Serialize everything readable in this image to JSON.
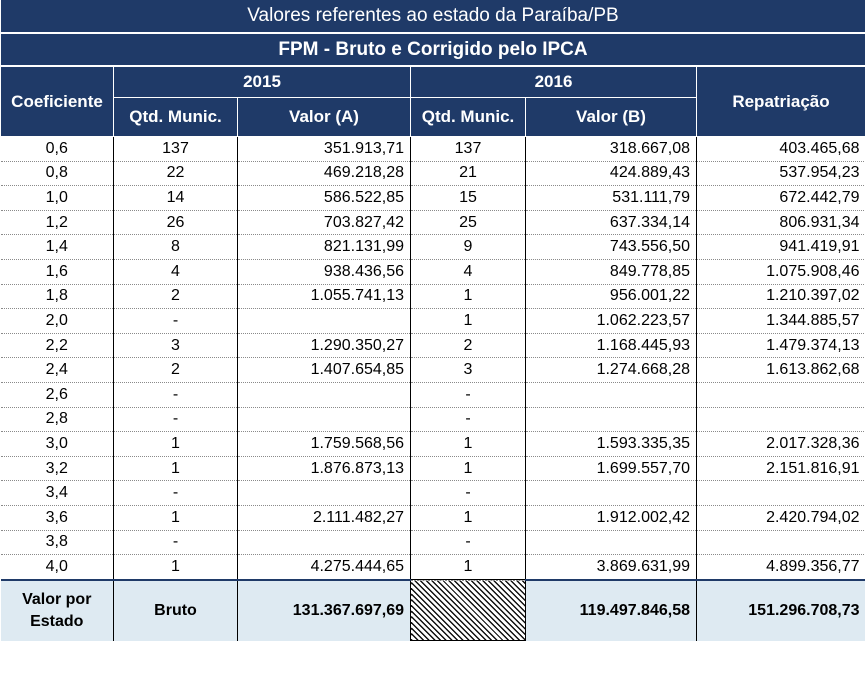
{
  "title": "Valores referentes ao estado da Paraíba/PB",
  "subtitle": "FPM - Bruto e Corrigido pelo IPCA",
  "headers": {
    "coeficiente": "Coeficiente",
    "year_2015": "2015",
    "year_2016": "2016",
    "repatriacao": "Repatriação",
    "qtd_munic_2015": "Qtd. Munic.",
    "valor_a": "Valor (A)",
    "qtd_munic_2016": "Qtd. Munic.",
    "valor_b": "Valor (B)"
  },
  "rows": [
    {
      "coef": "0,6",
      "q2015": "137",
      "valor_a": "351.913,71",
      "q2016": "137",
      "valor_b": "318.667,08",
      "repat": "403.465,68"
    },
    {
      "coef": "0,8",
      "q2015": "22",
      "valor_a": "469.218,28",
      "q2016": "21",
      "valor_b": "424.889,43",
      "repat": "537.954,23"
    },
    {
      "coef": "1,0",
      "q2015": "14",
      "valor_a": "586.522,85",
      "q2016": "15",
      "valor_b": "531.111,79",
      "repat": "672.442,79"
    },
    {
      "coef": "1,2",
      "q2015": "26",
      "valor_a": "703.827,42",
      "q2016": "25",
      "valor_b": "637.334,14",
      "repat": "806.931,34"
    },
    {
      "coef": "1,4",
      "q2015": "8",
      "valor_a": "821.131,99",
      "q2016": "9",
      "valor_b": "743.556,50",
      "repat": "941.419,91"
    },
    {
      "coef": "1,6",
      "q2015": "4",
      "valor_a": "938.436,56",
      "q2016": "4",
      "valor_b": "849.778,85",
      "repat": "1.075.908,46"
    },
    {
      "coef": "1,8",
      "q2015": "2",
      "valor_a": "1.055.741,13",
      "q2016": "1",
      "valor_b": "956.001,22",
      "repat": "1.210.397,02"
    },
    {
      "coef": "2,0",
      "q2015": "-",
      "valor_a": "",
      "q2016": "1",
      "valor_b": "1.062.223,57",
      "repat": "1.344.885,57"
    },
    {
      "coef": "2,2",
      "q2015": "3",
      "valor_a": "1.290.350,27",
      "q2016": "2",
      "valor_b": "1.168.445,93",
      "repat": "1.479.374,13"
    },
    {
      "coef": "2,4",
      "q2015": "2",
      "valor_a": "1.407.654,85",
      "q2016": "3",
      "valor_b": "1.274.668,28",
      "repat": "1.613.862,68"
    },
    {
      "coef": "2,6",
      "q2015": "-",
      "valor_a": "",
      "q2016": "-",
      "valor_b": "",
      "repat": ""
    },
    {
      "coef": "2,8",
      "q2015": "-",
      "valor_a": "",
      "q2016": "-",
      "valor_b": "",
      "repat": ""
    },
    {
      "coef": "3,0",
      "q2015": "1",
      "valor_a": "1.759.568,56",
      "q2016": "1",
      "valor_b": "1.593.335,35",
      "repat": "2.017.328,36"
    },
    {
      "coef": "3,2",
      "q2015": "1",
      "valor_a": "1.876.873,13",
      "q2016": "1",
      "valor_b": "1.699.557,70",
      "repat": "2.151.816,91"
    },
    {
      "coef": "3,4",
      "q2015": "-",
      "valor_a": "",
      "q2016": "-",
      "valor_b": "",
      "repat": ""
    },
    {
      "coef": "3,6",
      "q2015": "1",
      "valor_a": "2.111.482,27",
      "q2016": "1",
      "valor_b": "1.912.002,42",
      "repat": "2.420.794,02"
    },
    {
      "coef": "3,8",
      "q2015": "-",
      "valor_a": "",
      "q2016": "-",
      "valor_b": "",
      "repat": ""
    },
    {
      "coef": "4,0",
      "q2015": "1",
      "valor_a": "4.275.444,65",
      "q2016": "1",
      "valor_b": "3.869.631,99",
      "repat": "4.899.356,77"
    }
  ],
  "footer": {
    "label_line1": "Valor por",
    "label_line2": "Estado",
    "bruto": "Bruto",
    "total_a": "131.367.697,69",
    "total_b": "119.497.846,58",
    "total_repat": "151.296.708,73"
  },
  "colors": {
    "header_navy": "#1f3a68",
    "footer_light_blue": "#deeaf2"
  }
}
